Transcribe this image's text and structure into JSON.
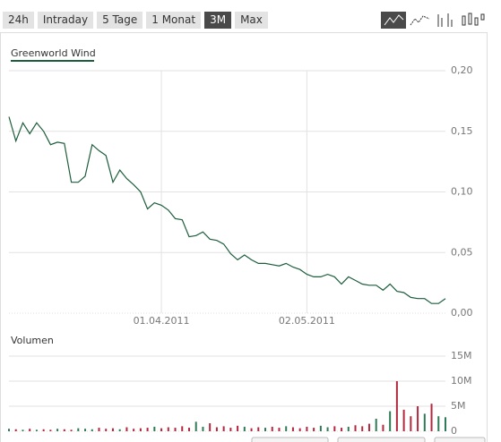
{
  "tabs": [
    {
      "label": "24h",
      "active": false
    },
    {
      "label": "Intraday",
      "active": false
    },
    {
      "label": "5 Tage",
      "active": false
    },
    {
      "label": "1 Monat",
      "active": false
    },
    {
      "label": "3M",
      "active": true
    },
    {
      "label": "Max",
      "active": false
    }
  ],
  "chart_data": [
    {
      "type": "line",
      "categories": [
        null,
        null,
        null,
        null,
        null,
        null,
        null,
        null,
        null,
        null,
        null,
        null,
        null,
        null,
        null,
        null,
        null,
        null,
        null,
        null,
        null,
        null,
        "01.04.2011",
        null,
        null,
        null,
        null,
        null,
        null,
        null,
        null,
        null,
        null,
        null,
        null,
        null,
        null,
        null,
        null,
        null,
        null,
        null,
        null,
        "02.05.2011",
        null,
        null,
        null,
        null,
        null,
        null,
        null,
        null,
        null,
        null,
        null,
        null,
        null,
        null,
        null,
        null,
        null,
        null,
        null,
        null
      ],
      "series": [
        {
          "name": "Greenworld Wind",
          "color": "#1d5e3c",
          "values": [
            0.162,
            0.142,
            0.157,
            0.148,
            0.157,
            0.15,
            0.139,
            0.141,
            0.14,
            0.108,
            0.108,
            0.113,
            0.139,
            0.134,
            0.13,
            0.108,
            0.118,
            0.111,
            0.106,
            0.1,
            0.086,
            0.091,
            0.089,
            0.085,
            0.078,
            0.077,
            0.063,
            0.064,
            0.067,
            0.061,
            0.06,
            0.057,
            0.049,
            0.044,
            0.048,
            0.044,
            0.041,
            0.041,
            0.04,
            0.039,
            0.041,
            0.038,
            0.036,
            0.032,
            0.03,
            0.03,
            0.032,
            0.03,
            0.024,
            0.03,
            0.027,
            0.024,
            0.023,
            0.023,
            0.019,
            0.024,
            0.018,
            0.017,
            0.013,
            0.012,
            0.012,
            0.008,
            0.008,
            0.012
          ]
        }
      ],
      "ylim": [
        0,
        0.2
      ],
      "yticks": [
        {
          "value": 0.2,
          "label": "0,20"
        },
        {
          "value": 0.15,
          "label": "0,15"
        },
        {
          "value": 0.1,
          "label": "0,10"
        },
        {
          "value": 0.05,
          "label": "0,05"
        },
        {
          "value": 0,
          "label": "0,00"
        }
      ],
      "grid": true
    },
    {
      "type": "bar",
      "title": "Volumen",
      "up_color": "#2f7b57",
      "down_color": "#b3283c",
      "values": [
        500000,
        400000,
        300000,
        500000,
        300000,
        400000,
        300000,
        500000,
        400000,
        300000,
        600000,
        500000,
        400000,
        700000,
        500000,
        600000,
        400000,
        800000,
        500000,
        600000,
        700000,
        900000,
        600000,
        800000,
        700000,
        1000000,
        700000,
        1900000,
        900000,
        1600000,
        800000,
        1000000,
        700000,
        1100000,
        900000,
        600000,
        800000,
        700000,
        900000,
        700000,
        1000000,
        800000,
        600000,
        900000,
        700000,
        1100000,
        800000,
        1000000,
        700000,
        900000,
        1200000,
        1000000,
        1500000,
        2500000,
        1300000,
        4000000,
        10000000,
        4300000,
        3000000,
        5000000,
        3500000,
        5500000,
        3000000,
        2800000
      ],
      "ylim": [
        0,
        15000000
      ],
      "yticks": [
        {
          "value": 15000000,
          "label": "15M"
        },
        {
          "value": 10000000,
          "label": "10M"
        },
        {
          "value": 5000000,
          "label": "5M"
        },
        0
      ],
      "grid": true
    }
  ]
}
